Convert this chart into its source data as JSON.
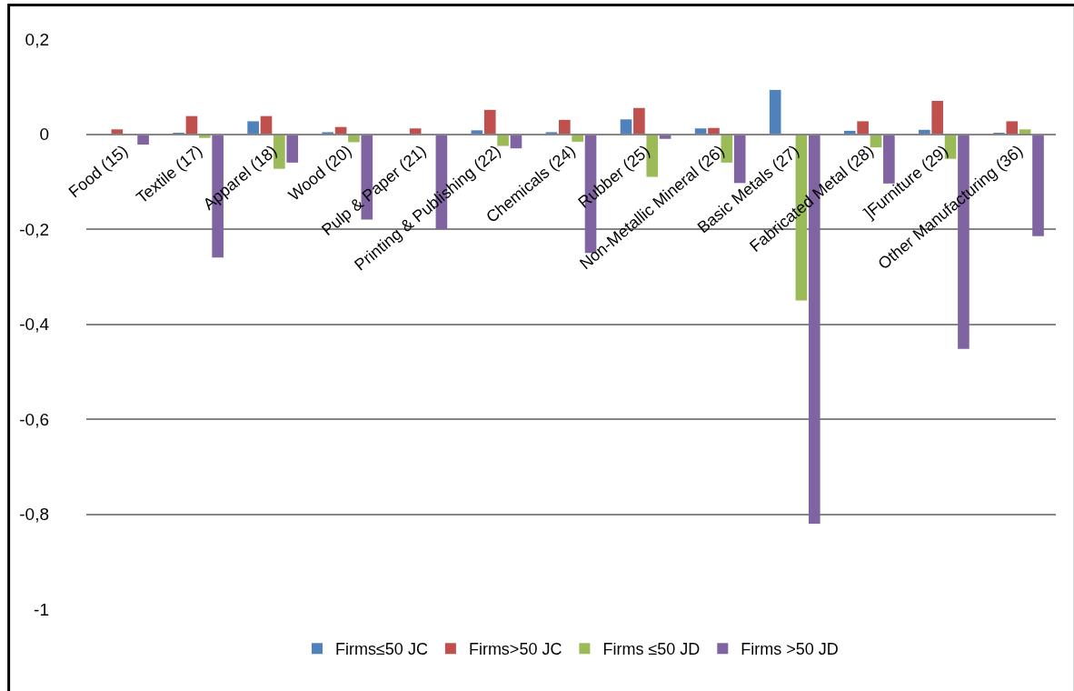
{
  "chart_data": {
    "type": "bar",
    "categories": [
      "Food (15)",
      "Textile (17)",
      "Apparel (18)",
      "Wood (20)",
      "Pulp & Paper (21)",
      "Printing & Publishing (22)",
      "Chemicals (24)",
      "Rubber (25)",
      "Non-Metallic Mineral (26)",
      "Basic Metals (27)",
      "Fabricated Metal (28)",
      "]Furniture (29)",
      "Other Manufacturing (36)"
    ],
    "series": [
      {
        "name": "Firms≤50 JC",
        "color": "#4f81bd",
        "values": [
          0,
          0.001,
          0.027,
          0.004,
          0,
          0.008,
          0.004,
          0.031,
          0.012,
          0.093,
          0.007,
          0.009,
          0.002
        ]
      },
      {
        "name": "Firms>50 JC",
        "color": "#c0504d",
        "values": [
          0.01,
          0.038,
          0.038,
          0.015,
          0.012,
          0.051,
          0.03,
          0.055,
          0.013,
          0,
          0.027,
          0.07,
          0.027
        ]
      },
      {
        "name": "Firms ≤50 JD",
        "color": "#9bbb59",
        "values": [
          0,
          -0.008,
          -0.073,
          -0.017,
          0,
          -0.025,
          -0.016,
          -0.09,
          -0.06,
          -0.35,
          -0.028,
          -0.052,
          0.01
        ]
      },
      {
        "name": "Firms >50 JD",
        "color": "#8064a2",
        "values": [
          -0.022,
          -0.26,
          -0.06,
          -0.18,
          -0.2,
          -0.03,
          -0.25,
          -0.01,
          -0.103,
          -0.82,
          -0.104,
          -0.452,
          -0.215
        ]
      }
    ],
    "ylim": [
      -1,
      0.2
    ],
    "yticks": [
      {
        "value": 0.2,
        "label": "0,2"
      },
      0,
      {
        "value": -0.2,
        "label": "-0,2"
      },
      {
        "value": -0.4,
        "label": "-0,4"
      },
      {
        "value": -0.6,
        "label": "-0,6"
      },
      {
        "value": -0.8,
        "label": "-0,8"
      },
      -1
    ],
    "grid": "y",
    "legend": "bottom"
  }
}
